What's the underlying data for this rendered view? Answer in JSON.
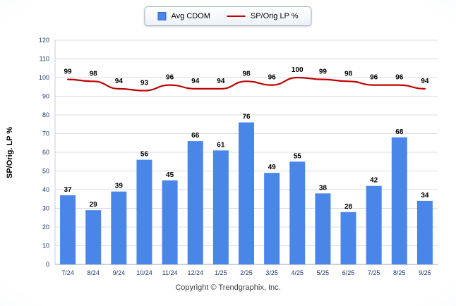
{
  "chart_data": {
    "type": "bar",
    "title": "",
    "categories": [
      "7/24",
      "8/24",
      "9/24",
      "10/24",
      "11/24",
      "12/24",
      "1/25",
      "2/25",
      "3/25",
      "4/25",
      "5/25",
      "6/25",
      "7/25",
      "8/25",
      "9/25"
    ],
    "series": [
      {
        "name": "Avg CDOM",
        "type": "bar",
        "color": "#4a86e8",
        "values": [
          37,
          29,
          39,
          56,
          45,
          66,
          61,
          76,
          49,
          55,
          38,
          28,
          42,
          68,
          34
        ]
      },
      {
        "name": "SP/Orig LP %",
        "type": "line",
        "color": "#c00000",
        "values": [
          99,
          98,
          94,
          93,
          96,
          94,
          94,
          98,
          96,
          100,
          99,
          98,
          96,
          96,
          94
        ]
      }
    ],
    "xlabel": "",
    "ylabel": "SP/Orig. LP %",
    "ylim": [
      0,
      120
    ],
    "ytick_step": 10,
    "grid": true,
    "legend_position": "top-center",
    "label_color": "#000000",
    "axis_text_color": "#1f3864"
  },
  "footer": {
    "copyright": "Copyright © Trendgraphix, Inc."
  }
}
